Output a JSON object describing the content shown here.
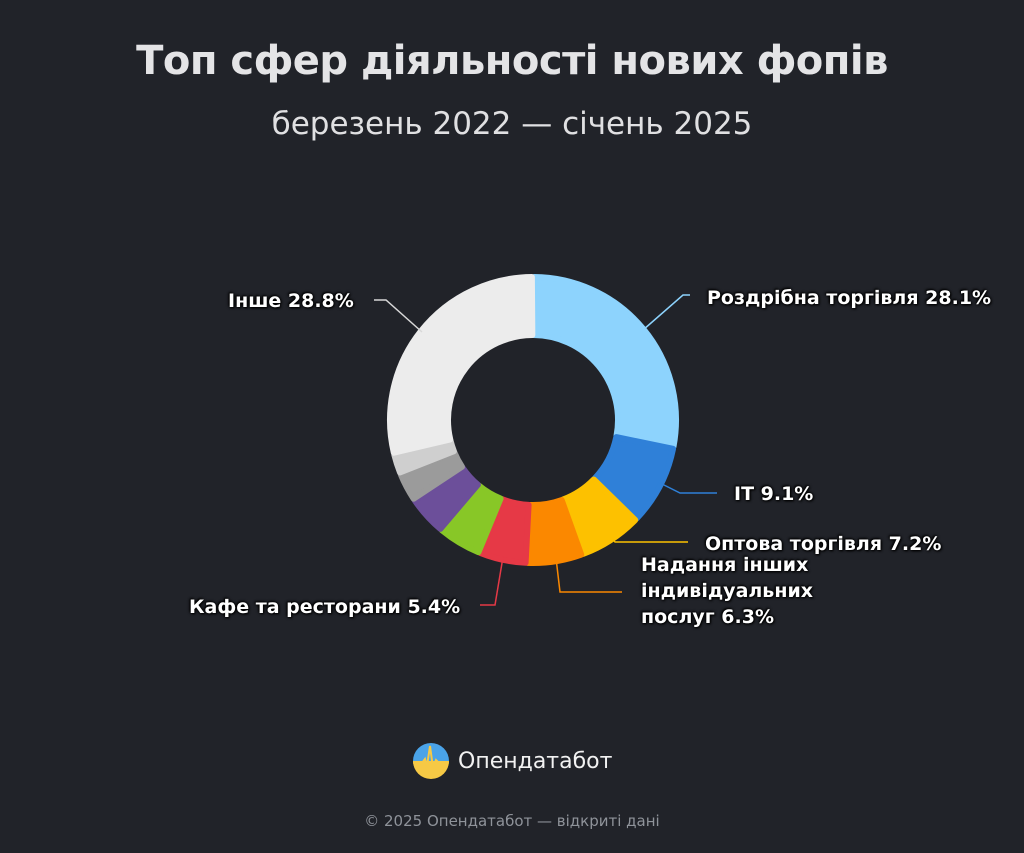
{
  "header": {
    "title": "Топ сфер діяльності нових фопів",
    "subtitle": "березень 2022 — січень 2025"
  },
  "brand": {
    "name": "Опендатабот",
    "logo_icon": "opendatabot-logo-icon"
  },
  "footer": {
    "text": "© 2025 Опендатабот — відкриті дані"
  },
  "chart_data": {
    "type": "pie",
    "variant": "donut",
    "title": "Топ сфер діяльності нових фопів",
    "subtitle": "березень 2022 — січень 2025",
    "start_angle_deg": 0,
    "direction": "clockwise",
    "unit": "%",
    "slices": [
      {
        "label": "Роздрібна торгівля",
        "value": 28.1,
        "color": "#8dd3fd",
        "shown_label": "Роздрібна торгівля 28.1%"
      },
      {
        "label": "IT",
        "value": 9.1,
        "color": "#2f80d8",
        "shown_label": "IT 9.1%"
      },
      {
        "label": "Оптова торгівля",
        "value": 7.2,
        "color": "#fdc100",
        "shown_label": "Оптова торгівля 7.2%"
      },
      {
        "label": "Надання інших індивідуальних послуг",
        "value": 6.3,
        "color": "#fb8800",
        "shown_label": "Надання інших індивідуальних послуг 6.3%"
      },
      {
        "label": "Кафе та ресторани",
        "value": 5.4,
        "color": "#e63946",
        "shown_label": "Кафе та ресторани 5.4%"
      },
      {
        "label": "",
        "value": 5.0,
        "color": "#88c727",
        "shown_label": ""
      },
      {
        "label": "",
        "value": 4.5,
        "color": "#6c4f9a",
        "shown_label": ""
      },
      {
        "label": "",
        "value": 3.3,
        "color": "#9b9b9b",
        "shown_label": ""
      },
      {
        "label": "",
        "value": 2.3,
        "color": "#cfcfcf",
        "shown_label": ""
      },
      {
        "label": "Інше",
        "value": 28.8,
        "color": "#ececec",
        "shown_label": "Інше 28.8%"
      }
    ],
    "legend": "none (direct labels with leader lines)"
  },
  "labels": {
    "retail": "Роздрібна торгівля 28.1%",
    "it": "IT 9.1%",
    "wholesale": "Оптова торгівля 7.2%",
    "services_l1": "Надання інших",
    "services_l2": "індивідуальних",
    "services_l3": "послуг 6.3%",
    "cafe": "Кафе та ресторани 5.4%",
    "other": "Інше 28.8%"
  }
}
